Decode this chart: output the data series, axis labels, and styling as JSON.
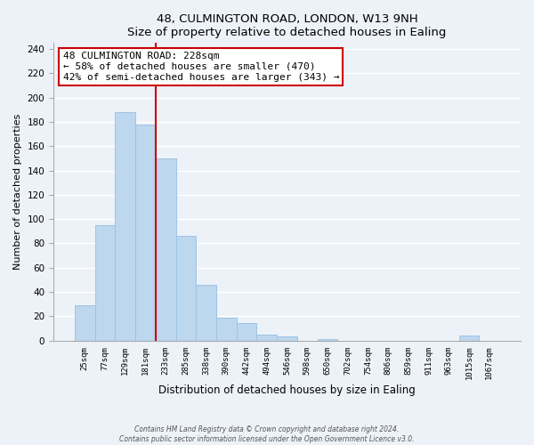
{
  "title1": "48, CULMINGTON ROAD, LONDON, W13 9NH",
  "title2": "Size of property relative to detached houses in Ealing",
  "xlabel": "Distribution of detached houses by size in Ealing",
  "ylabel": "Number of detached properties",
  "bar_labels": [
    "25sqm",
    "77sqm",
    "129sqm",
    "181sqm",
    "233sqm",
    "285sqm",
    "338sqm",
    "390sqm",
    "442sqm",
    "494sqm",
    "546sqm",
    "598sqm",
    "650sqm",
    "702sqm",
    "754sqm",
    "806sqm",
    "859sqm",
    "911sqm",
    "963sqm",
    "1015sqm",
    "1067sqm"
  ],
  "bar_heights": [
    29,
    95,
    188,
    178,
    150,
    86,
    46,
    19,
    14,
    5,
    3,
    0,
    1,
    0,
    0,
    0,
    0,
    0,
    0,
    4,
    0
  ],
  "bar_color": "#bdd7ee",
  "bar_edge_color": "#9dc3e6",
  "highlight_line_color": "#cc0000",
  "annotation_text_line1": "48 CULMINGTON ROAD: 228sqm",
  "annotation_text_line2": "← 58% of detached houses are smaller (470)",
  "annotation_text_line3": "42% of semi-detached houses are larger (343) →",
  "ylim": [
    0,
    245
  ],
  "yticks": [
    0,
    20,
    40,
    60,
    80,
    100,
    120,
    140,
    160,
    180,
    200,
    220,
    240
  ],
  "footer_line1": "Contains HM Land Registry data © Crown copyright and database right 2024.",
  "footer_line2": "Contains public sector information licensed under the Open Government Licence v3.0.",
  "bg_color": "#edf2f9",
  "grid_color": "#ffffff"
}
